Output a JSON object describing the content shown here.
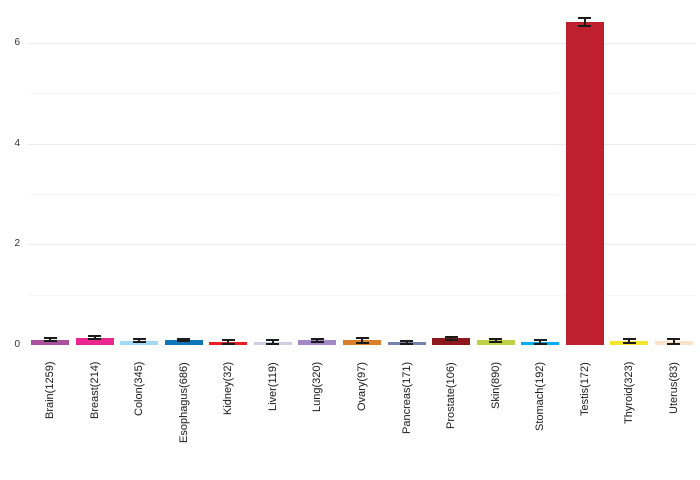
{
  "chart_data": {
    "type": "bar",
    "title": "",
    "xlabel": "",
    "ylabel": "",
    "legend": "none",
    "grid": "horizontal",
    "ylim": [
      0,
      6.85
    ],
    "yticks": [
      0,
      2,
      4,
      6
    ],
    "minor_yticks": [
      1,
      3,
      5
    ],
    "categories": [
      "Brain(1259)",
      "Breast(214)",
      "Colon(345)",
      "Esophagus(686)",
      "Kidney(32)",
      "Liver(119)",
      "Lung(320)",
      "Ovary(97)",
      "Pancreas(171)",
      "Prostate(106)",
      "Skin(890)",
      "Stomach(192)",
      "Testis(172)",
      "Thyroid(323)",
      "Uterus(83)"
    ],
    "values": [
      0.1,
      0.14,
      0.08,
      0.09,
      0.06,
      0.05,
      0.09,
      0.09,
      0.05,
      0.13,
      0.09,
      0.05,
      6.42,
      0.08,
      0.07
    ],
    "errors": [
      0.03,
      0.03,
      0.03,
      0.02,
      0.04,
      0.04,
      0.03,
      0.05,
      0.03,
      0.03,
      0.03,
      0.04,
      0.08,
      0.04,
      0.05
    ],
    "bar_colors": [
      "#a9519f",
      "#ec268f",
      "#a4d9f5",
      "#1076ba",
      "#ed1c24",
      "#cfcfe4",
      "#a288c4",
      "#dc7f2a",
      "#7383ac",
      "#8c181b",
      "#bcd242",
      "#00aeef",
      "#be202e",
      "#f5e52d",
      "#fae3c8"
    ],
    "error_bar_color": "#1c1c1c",
    "major_grid_color": "#ebebeb",
    "minor_grid_color": "#f6f6f6",
    "background_color": "#ffffff"
  }
}
